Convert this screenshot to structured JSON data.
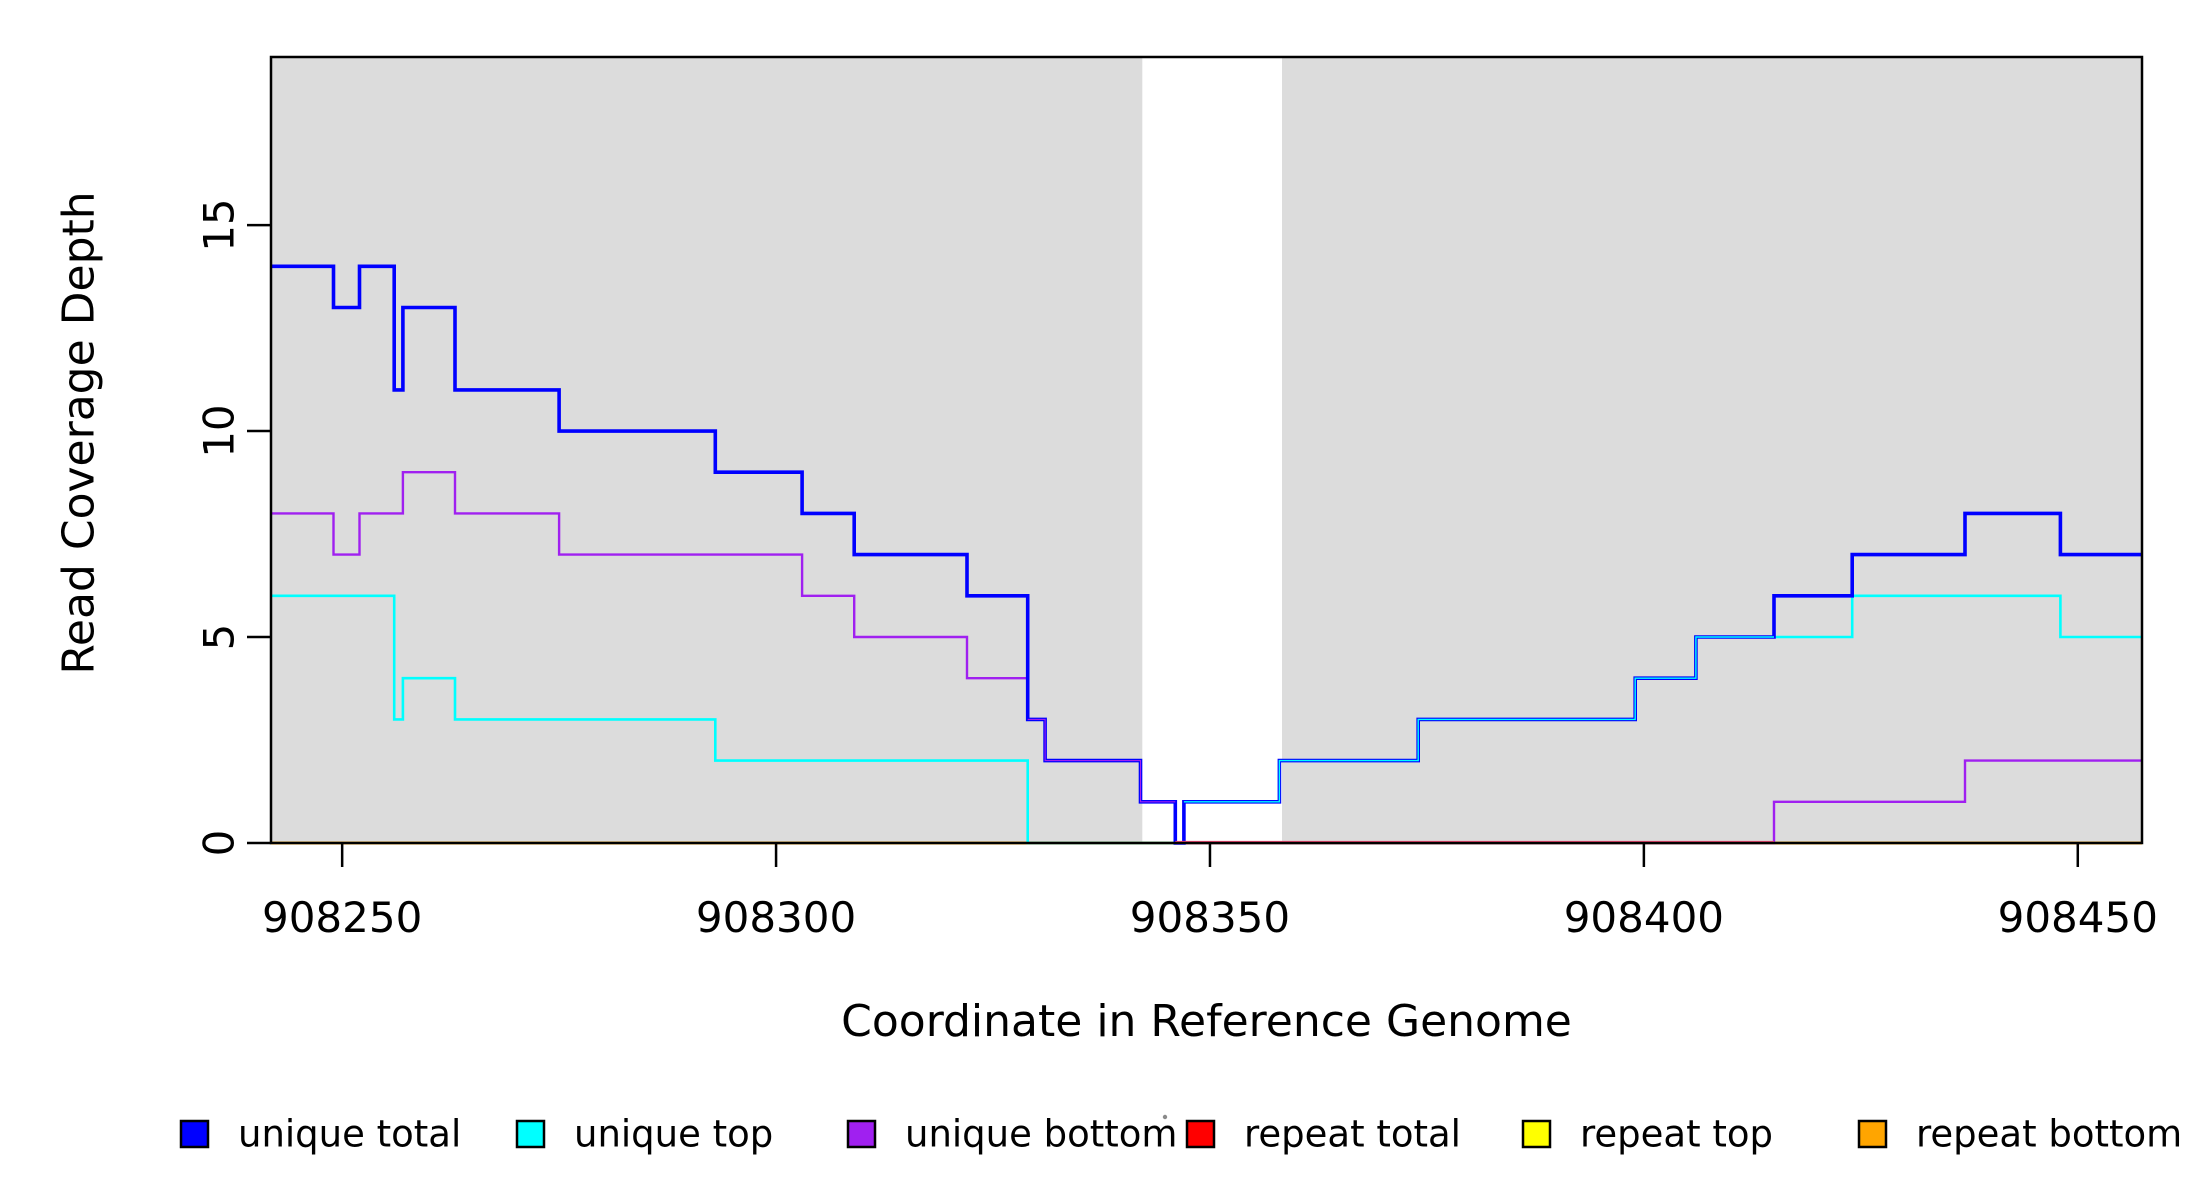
{
  "chart_data": {
    "type": "line",
    "subtype": "step",
    "title": "",
    "xlabel": "Coordinate in Reference Genome",
    "ylabel": "Read Coverage Depth",
    "xlim": [
      908241.8,
      908457.4
    ],
    "ylim": [
      0,
      19.08
    ],
    "x_ticks": [
      908250,
      908300,
      908350,
      908400,
      908450
    ],
    "y_ticks": [
      0,
      5,
      10,
      15
    ],
    "grid": false,
    "plot_background": "#ffffff",
    "shaded_regions": {
      "color": "#DCDCDC",
      "comment_label": "repeat-masked shading",
      "ranges": [
        [
          908241.8,
          908342.2
        ],
        [
          908358.3,
          908457.4
        ]
      ]
    },
    "series": [
      {
        "name": "repeat top",
        "color": "#FFFF00",
        "lw": 2,
        "breaks": [
          908241.8,
          908457.4
        ],
        "values": [
          0
        ]
      },
      {
        "name": "repeat total",
        "color": "#FF0000",
        "lw": 2.2,
        "breaks": [
          908241.8,
          908457.4
        ],
        "values": [
          0
        ]
      },
      {
        "name": "repeat bottom",
        "color": "#FFA500",
        "lw": 3,
        "breaks": [
          908241.8,
          908457.4
        ],
        "values": [
          0
        ]
      },
      {
        "name": "unique bottom",
        "color": "#A020F0",
        "lw": 2.4,
        "breaks": [
          908241.8,
          908249,
          908252,
          908257,
          908263,
          908275,
          908303,
          908309,
          908322,
          908329,
          908331,
          908342,
          908346,
          908415,
          908437,
          908457.4
        ],
        "values": [
          8,
          7,
          8,
          9,
          8,
          7,
          6,
          5,
          4,
          3,
          2,
          1,
          0,
          1,
          2
        ]
      },
      {
        "name": "unique top",
        "color": "#00FFFF",
        "lw": 2.6,
        "breaks": [
          908241.8,
          908256,
          908257,
          908263,
          908293,
          908329,
          908347,
          908358,
          908374,
          908399,
          908406,
          908424,
          908448,
          908457.4
        ],
        "values": [
          6,
          3,
          4,
          3,
          2,
          0,
          1,
          2,
          3,
          4,
          5,
          6,
          5
        ]
      },
      {
        "name": "unique total",
        "color": "#0000FF",
        "lw": 3.6,
        "breaks": [
          908241.8,
          908249,
          908252,
          908256,
          908257,
          908263,
          908275,
          908293,
          908303,
          908309,
          908322,
          908329,
          908331,
          908342,
          908346,
          908347,
          908358,
          908374,
          908399,
          908406,
          908415,
          908424,
          908437,
          908448,
          908457.4
        ],
        "values": [
          14,
          13,
          14,
          11,
          13,
          11,
          10,
          9,
          8,
          7,
          6,
          3,
          2,
          1,
          0,
          1,
          2,
          3,
          4,
          5,
          6,
          7,
          8,
          7
        ]
      }
    ],
    "overlays": [
      {
        "series": "unique top",
        "from": 908347,
        "to": 908415,
        "lw": 1.4,
        "dy": 0,
        "color": ""
      },
      {
        "series": "unique bottom",
        "from": 908329,
        "to": 908346,
        "lw": 1.1,
        "dy": 0,
        "color": ""
      },
      {
        "series": "repeat total",
        "from": 908346,
        "to": 908415,
        "lw": 1.6,
        "dy": -1.3,
        "color": "#FF4D78"
      }
    ],
    "legend": {
      "position": "bottom",
      "items": [
        {
          "label": "unique total",
          "color": "#0000FF"
        },
        {
          "label": "unique top",
          "color": "#00FFFF"
        },
        {
          "label": "unique bottom",
          "color": "#A020F0"
        },
        {
          "label": "repeat total",
          "color": "#FF0000"
        },
        {
          "label": "repeat top",
          "color": "#FFFF00"
        },
        {
          "label": "repeat bottom",
          "color": "#FFA500"
        }
      ]
    },
    "stray_mark": {
      "x": 1165,
      "y": 1117
    }
  }
}
